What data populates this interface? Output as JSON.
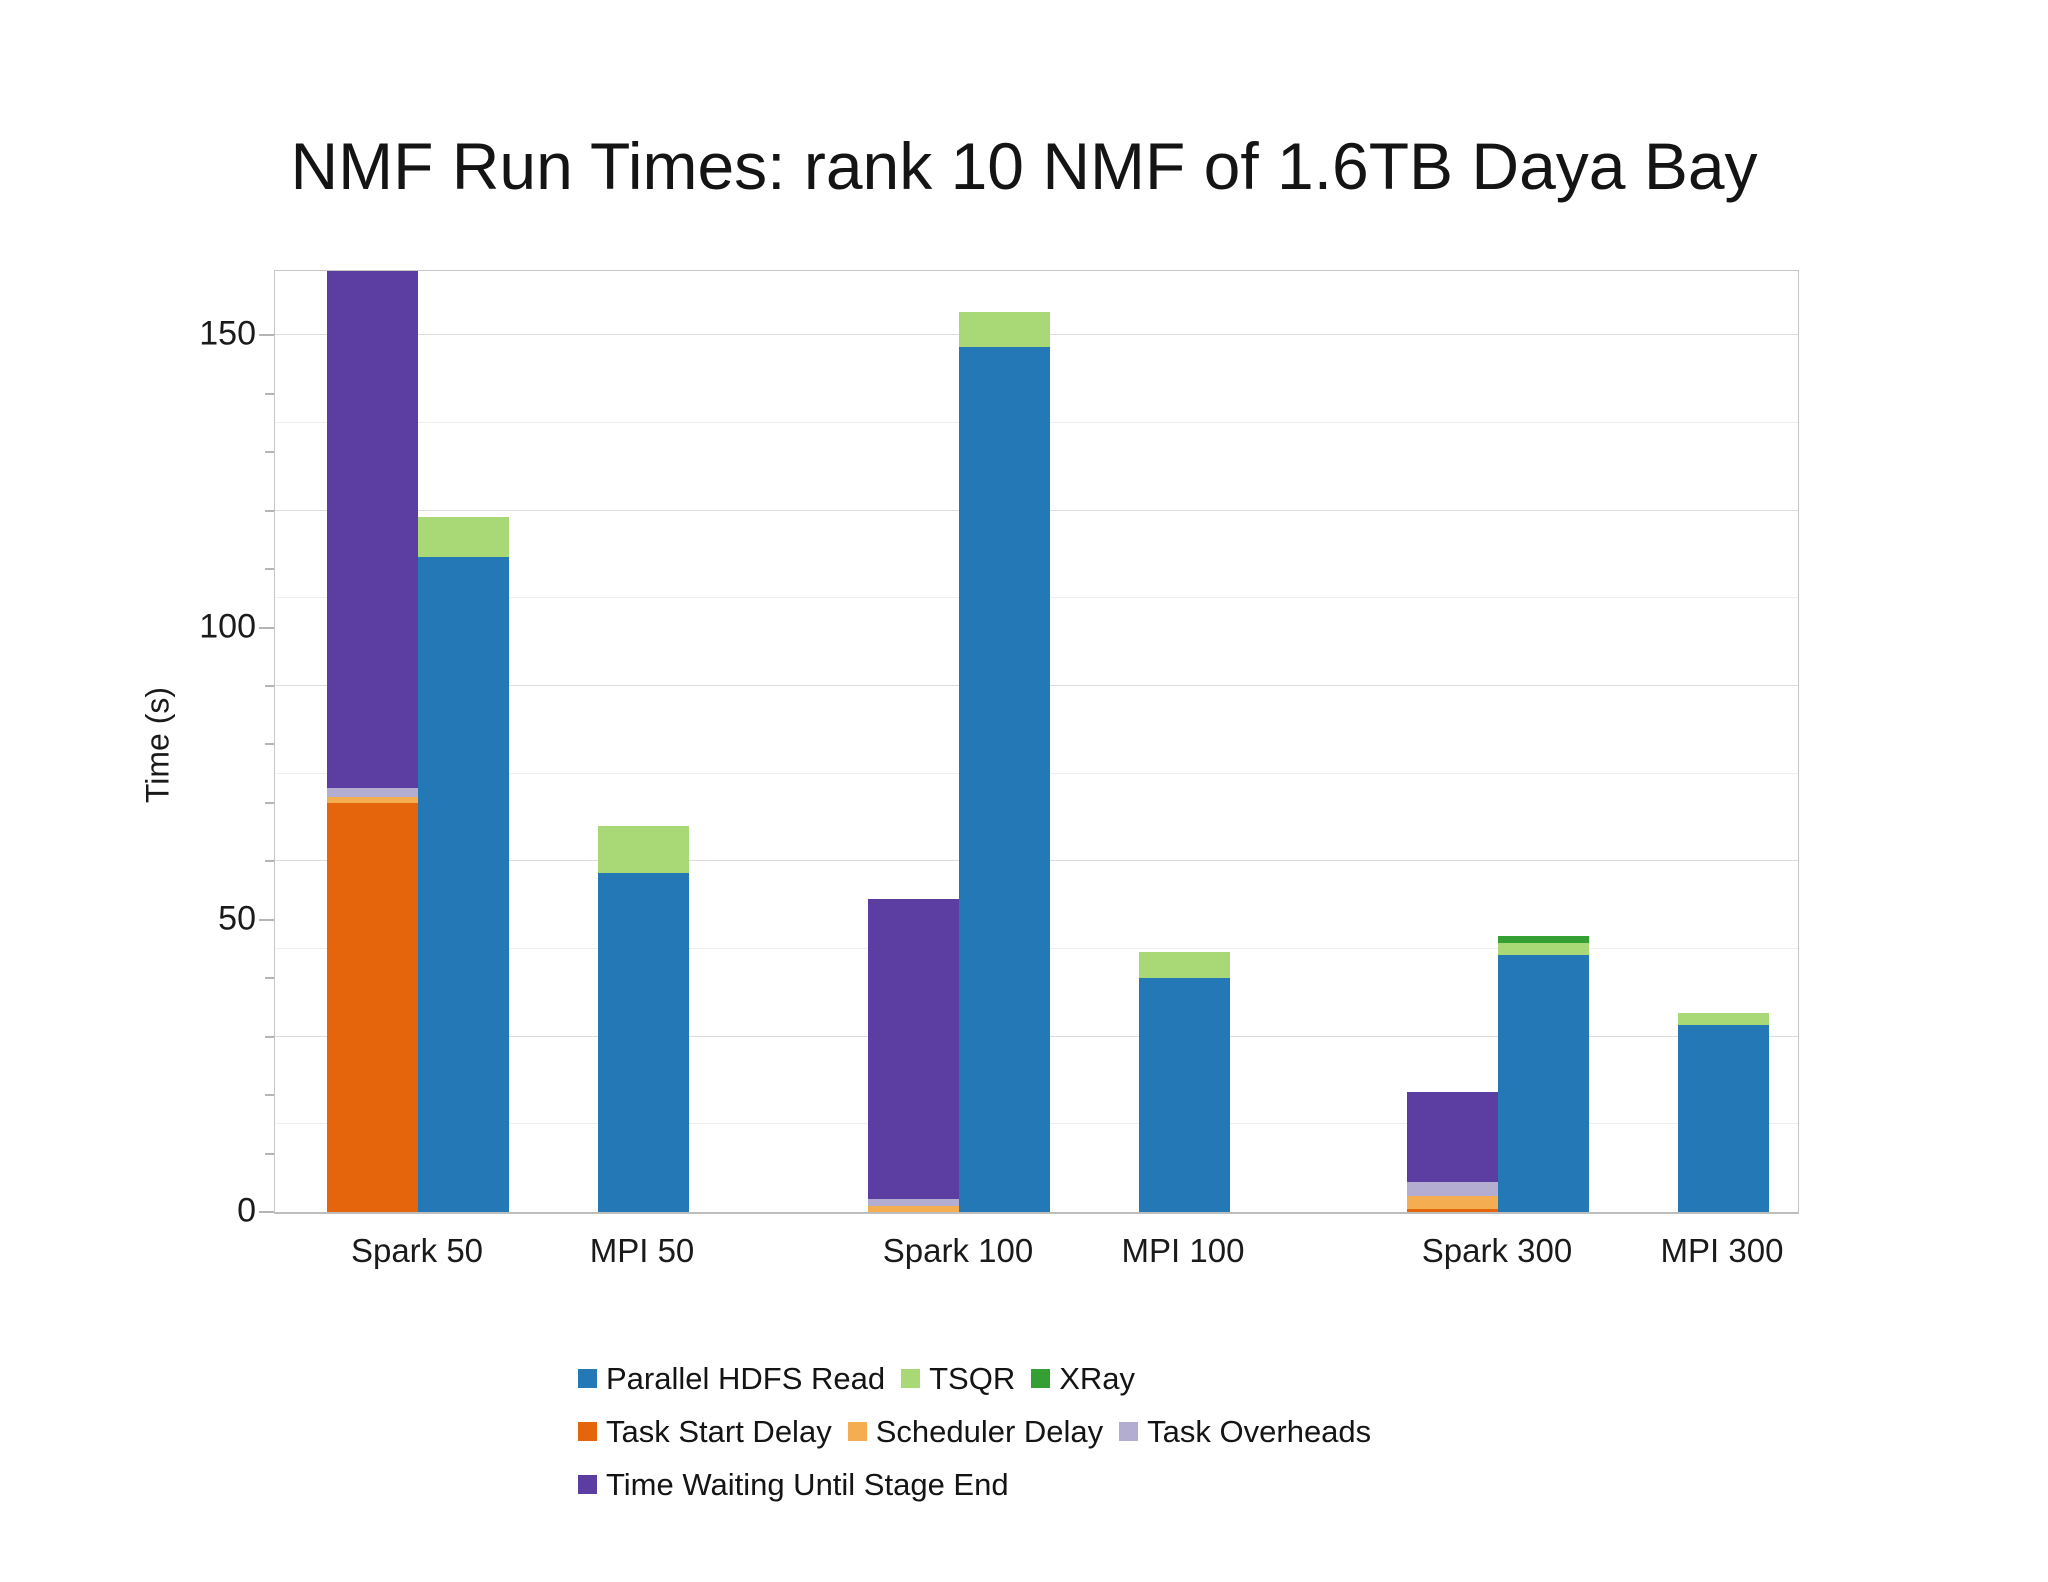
{
  "chart_data": {
    "type": "bar",
    "variant": "stacked-grouped",
    "title": "NMF Run Times: rank 10 NMF of 1.6TB Daya Bay",
    "ylabel": "Time (s)",
    "ylim": [
      0,
      161
    ],
    "yticks": [
      0,
      50,
      100,
      150
    ],
    "minor_tick_step": 10,
    "gridline_step": 30,
    "minor_gridline_step": 15,
    "grid": "on",
    "legend_position": "bottom",
    "categories": [
      "Spark 50",
      "MPI 50",
      "Spark 100",
      "MPI 100",
      "Spark 300",
      "MPI 300"
    ],
    "series": [
      {
        "name": "Parallel HDFS Read",
        "stack": "compute",
        "color": "#2478b5",
        "values": [
          112,
          58,
          148,
          40,
          44,
          32
        ]
      },
      {
        "name": "TSQR",
        "stack": "compute",
        "color": "#a9d877",
        "values": [
          7,
          8,
          6,
          4.5,
          2,
          2
        ]
      },
      {
        "name": "XRay",
        "stack": "compute",
        "color": "#34a033",
        "values": [
          0,
          0,
          0,
          0,
          1.3,
          0
        ]
      },
      {
        "name": "Task Start Delay",
        "stack": "delays",
        "color": "#e4650c",
        "values": [
          70,
          0,
          0,
          0,
          0.5,
          0
        ]
      },
      {
        "name": "Scheduler Delay",
        "stack": "delays",
        "color": "#f5ad52",
        "values": [
          1,
          0,
          1,
          0,
          2.2,
          0
        ]
      },
      {
        "name": "Task Overheads",
        "stack": "delays",
        "color": "#b3add1",
        "values": [
          1.5,
          0,
          1.3,
          0,
          2.5,
          0
        ]
      },
      {
        "name": "Time Waiting Until Stage End",
        "stack": "delays",
        "color": "#5c3da1",
        "values": [
          89,
          0,
          51.2,
          0,
          15.3,
          0
        ]
      }
    ],
    "stack_order": {
      "delays": [
        3,
        4,
        5,
        6
      ],
      "compute": [
        0,
        1,
        2
      ]
    },
    "legend_rows": [
      [
        0,
        1,
        2
      ],
      [
        3,
        4,
        5
      ],
      [
        6
      ]
    ]
  }
}
